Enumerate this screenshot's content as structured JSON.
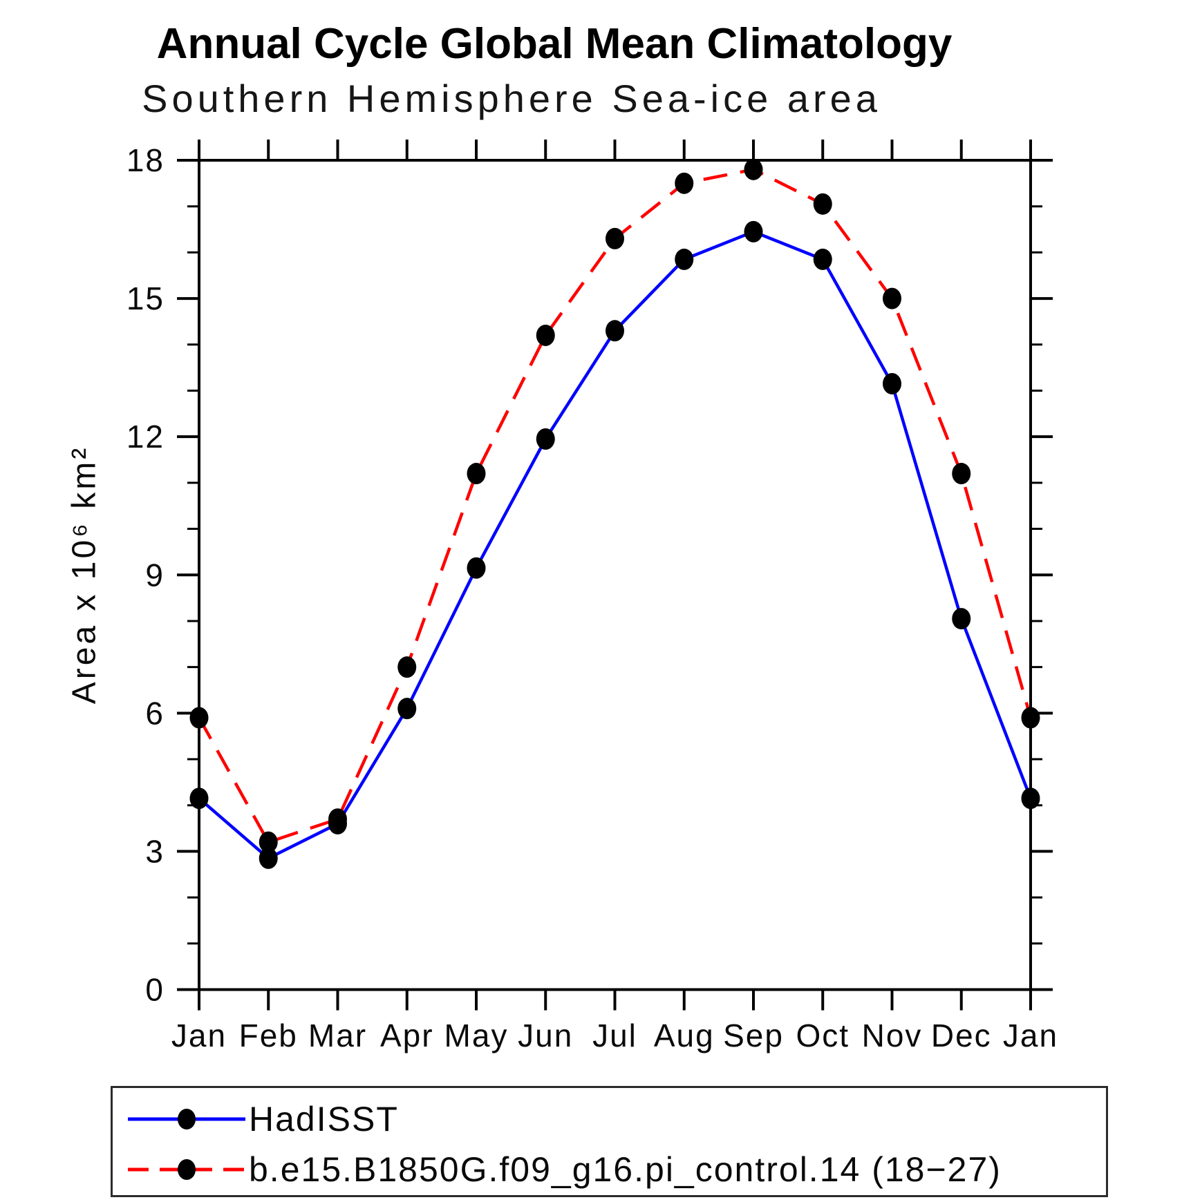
{
  "chart_data": {
    "type": "line",
    "title": "Annual Cycle Global Mean Climatology",
    "subtitle": "Southern Hemisphere Sea-ice area",
    "ylabel": "Area x 10⁶ km²",
    "categories": [
      "Jan",
      "Feb",
      "Mar",
      "Apr",
      "May",
      "Jun",
      "Jul",
      "Aug",
      "Sep",
      "Oct",
      "Nov",
      "Dec",
      "Jan"
    ],
    "ylim": [
      0,
      18
    ],
    "ytick_major": [
      0,
      3,
      6,
      9,
      12,
      15,
      18
    ],
    "ytick_minor_step": 1,
    "grid": false,
    "legend_position": "bottom-box",
    "axis_color": "#000000",
    "marker": {
      "shape": "filled-circle",
      "color": "#000000"
    },
    "series": [
      {
        "name": "HadISST",
        "color": "#0000ff",
        "line_style": "solid",
        "values": [
          4.15,
          2.85,
          3.6,
          6.1,
          9.15,
          11.95,
          14.3,
          15.85,
          16.45,
          15.85,
          13.15,
          8.05,
          4.15
        ]
      },
      {
        "name": "b.e15.B1850G.f09_g16.pi_control.14 (18−27)",
        "color": "#ff0000",
        "line_style": "dashed",
        "values": [
          5.9,
          3.2,
          3.7,
          7.0,
          11.2,
          14.2,
          16.3,
          17.5,
          17.8,
          17.05,
          15.0,
          11.2,
          5.9
        ]
      }
    ]
  }
}
